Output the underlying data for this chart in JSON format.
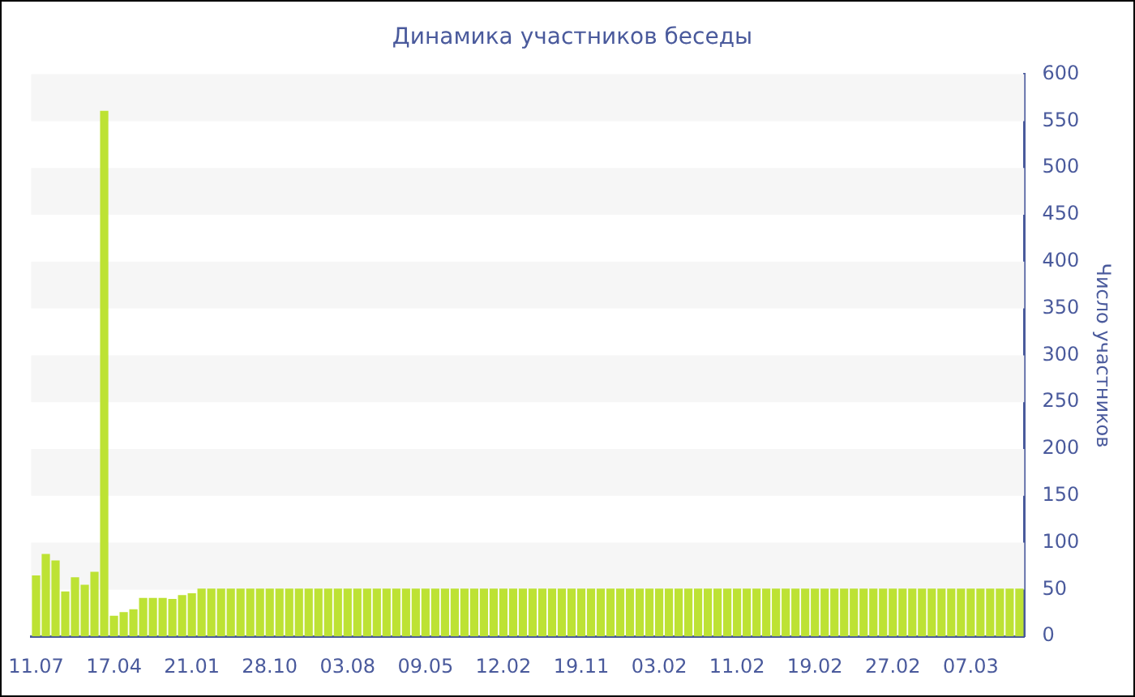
{
  "chart_data": {
    "type": "bar",
    "title": "Динамика участников беседы",
    "ylabel": "Число участников",
    "categories": [
      "11.07",
      null,
      null,
      null,
      null,
      null,
      null,
      null,
      "17.04",
      null,
      null,
      null,
      null,
      null,
      null,
      null,
      "21.01",
      null,
      null,
      null,
      null,
      null,
      null,
      null,
      "28.10",
      null,
      null,
      null,
      null,
      null,
      null,
      null,
      "03.08",
      null,
      null,
      null,
      null,
      null,
      null,
      null,
      "09.05",
      null,
      null,
      null,
      null,
      null,
      null,
      null,
      "12.02",
      null,
      null,
      null,
      null,
      null,
      null,
      null,
      "19.11",
      null,
      null,
      null,
      null,
      null,
      null,
      null,
      "03.02",
      null,
      null,
      null,
      null,
      null,
      null,
      null,
      "11.02",
      null,
      null,
      null,
      null,
      null,
      null,
      null,
      "19.02",
      null,
      null,
      null,
      null,
      null,
      null,
      null,
      "27.02",
      null,
      null,
      null,
      null,
      null,
      null,
      null,
      "07.03",
      null,
      null,
      null,
      null,
      null
    ],
    "values": [
      65,
      88,
      81,
      48,
      63,
      55,
      69,
      561,
      22,
      26,
      29,
      41,
      41,
      41,
      40,
      44,
      46,
      51,
      51,
      51,
      51,
      51,
      51,
      51,
      51,
      51,
      51,
      51,
      51,
      51,
      51,
      51,
      51,
      51,
      51,
      51,
      51,
      51,
      51,
      51,
      51,
      51,
      51,
      51,
      51,
      51,
      51,
      51,
      51,
      51,
      51,
      51,
      51,
      51,
      51,
      51,
      51,
      51,
      51,
      51,
      51,
      51,
      51,
      51,
      51,
      51,
      51,
      51,
      51,
      51,
      51,
      51,
      51,
      51,
      51,
      51,
      51,
      51,
      51,
      51,
      51,
      51,
      51,
      51,
      51,
      51,
      51,
      51,
      51,
      51,
      51,
      51,
      51,
      51,
      51,
      51,
      51,
      51,
      51,
      51,
      51,
      51
    ],
    "color": "#bde234",
    "ylim": [
      0,
      600
    ],
    "yticks": [
      0,
      50,
      100,
      150,
      200,
      250,
      300,
      350,
      400,
      450,
      500,
      550,
      600
    ],
    "legend": false,
    "bands": [
      {
        "axis": "y",
        "from": 50,
        "to": 100,
        "color": "#f6f6f6"
      },
      {
        "axis": "y",
        "from": 150,
        "to": 200,
        "color": "#f6f6f6"
      },
      {
        "axis": "y",
        "from": 250,
        "to": 300,
        "color": "#f6f6f6"
      },
      {
        "axis": "y",
        "from": 350,
        "to": 400,
        "color": "#f6f6f6"
      },
      {
        "axis": "y",
        "from": 450,
        "to": 500,
        "color": "#f6f6f6"
      },
      {
        "axis": "y",
        "from": 550,
        "to": 600,
        "color": "#f6f6f6"
      }
    ]
  }
}
